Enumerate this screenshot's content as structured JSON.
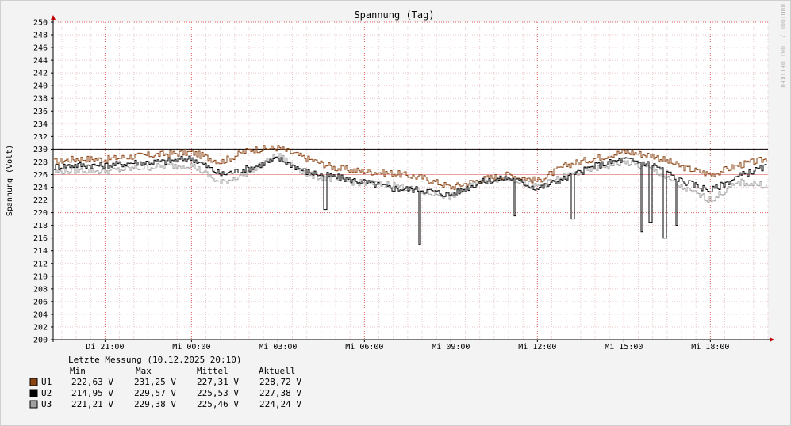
{
  "chart_data": {
    "type": "line",
    "title": "Spannung (Tag)",
    "ylabel": "Spannung (Volt)",
    "xlabel": "",
    "watermark": "RRDTOOL / TOBI OETIKER",
    "ylim": [
      200,
      250
    ],
    "y_ticks": [
      "200",
      "202",
      "204",
      "206",
      "208",
      "210",
      "212",
      "214",
      "216",
      "218",
      "220",
      "222",
      "224",
      "226",
      "228",
      "230",
      "232",
      "234",
      "236",
      "238",
      "240",
      "242",
      "244",
      "246",
      "248",
      "250"
    ],
    "x_ticks": [
      "Di 21:00",
      "Mi 00:00",
      "Mi 03:00",
      "Mi 06:00",
      "Mi 09:00",
      "Mi 12:00",
      "Mi 15:00",
      "Mi 18:00"
    ],
    "reference_lines": [
      {
        "value": 234,
        "color": "#e8a0a0"
      },
      {
        "value": 230,
        "color": "#000000"
      },
      {
        "value": 226,
        "color": "#e8a0a0"
      }
    ],
    "x_hours": [
      19.2,
      20,
      21,
      22,
      23,
      24,
      25,
      26,
      27,
      28,
      29,
      30,
      31,
      32,
      33,
      34,
      35,
      36,
      37,
      38,
      39,
      40,
      41,
      42,
      43,
      44
    ],
    "series": [
      {
        "name": "U1",
        "color": "#8b4513",
        "values": [
          228.0,
          228.5,
          228.4,
          228.9,
          229.2,
          229.5,
          228.0,
          229.9,
          230.2,
          228.5,
          227.0,
          226.5,
          226.2,
          225.5,
          224.0,
          225.2,
          226.0,
          225.0,
          227.5,
          228.6,
          229.6,
          229.0,
          227.2,
          226.0,
          227.5,
          228.5
        ]
      },
      {
        "name": "U2",
        "color": "#000000",
        "values": [
          227.2,
          227.5,
          227.4,
          227.9,
          228.0,
          228.6,
          226.0,
          227.0,
          228.5,
          226.4,
          225.6,
          224.8,
          223.8,
          223.6,
          222.8,
          224.8,
          225.5,
          223.8,
          225.5,
          227.4,
          228.4,
          227.6,
          225.0,
          223.5,
          225.8,
          227.38
        ]
      },
      {
        "name": "U3",
        "color": "#a0a0a0",
        "values": [
          226.4,
          226.7,
          226.5,
          227.0,
          227.3,
          227.5,
          224.6,
          226.5,
          229.0,
          226.0,
          225.2,
          224.6,
          224.4,
          223.2,
          222.6,
          225.0,
          225.5,
          224.1,
          225.8,
          227.0,
          228.0,
          226.8,
          223.9,
          222.0,
          224.8,
          224.24
        ]
      }
    ],
    "dips": [
      {
        "series": "U2",
        "x": 28.6,
        "value": 220.5
      },
      {
        "series": "U2",
        "x": 31.9,
        "value": 215.0
      },
      {
        "series": "U2",
        "x": 35.2,
        "value": 219.5
      },
      {
        "series": "U2",
        "x": 37.2,
        "value": 219.0
      },
      {
        "series": "U2",
        "x": 39.6,
        "value": 217.0
      },
      {
        "series": "U2",
        "x": 39.9,
        "value": 218.5
      },
      {
        "series": "U2",
        "x": 40.4,
        "value": 216.0
      },
      {
        "series": "U2",
        "x": 40.8,
        "value": 218.0
      }
    ],
    "legend": {
      "header": "Letzte Messung (10.12.2025 20:10)",
      "columns": [
        "Min",
        "Max",
        "Mittel",
        "Aktuell"
      ],
      "rows": [
        {
          "name": "U1",
          "color": "#8b4513",
          "min": "222,63 V",
          "max": "231,25 V",
          "mittel": "227,31 V",
          "aktuell": "228,72 V"
        },
        {
          "name": "U2",
          "color": "#000000",
          "min": "214,95 V",
          "max": "229,57 V",
          "mittel": "225,53 V",
          "aktuell": "227,38 V"
        },
        {
          "name": "U3",
          "color": "#a0a0a0",
          "min": "221,21 V",
          "max": "229,38 V",
          "mittel": "225,46 V",
          "aktuell": "224,24 V"
        }
      ]
    }
  }
}
